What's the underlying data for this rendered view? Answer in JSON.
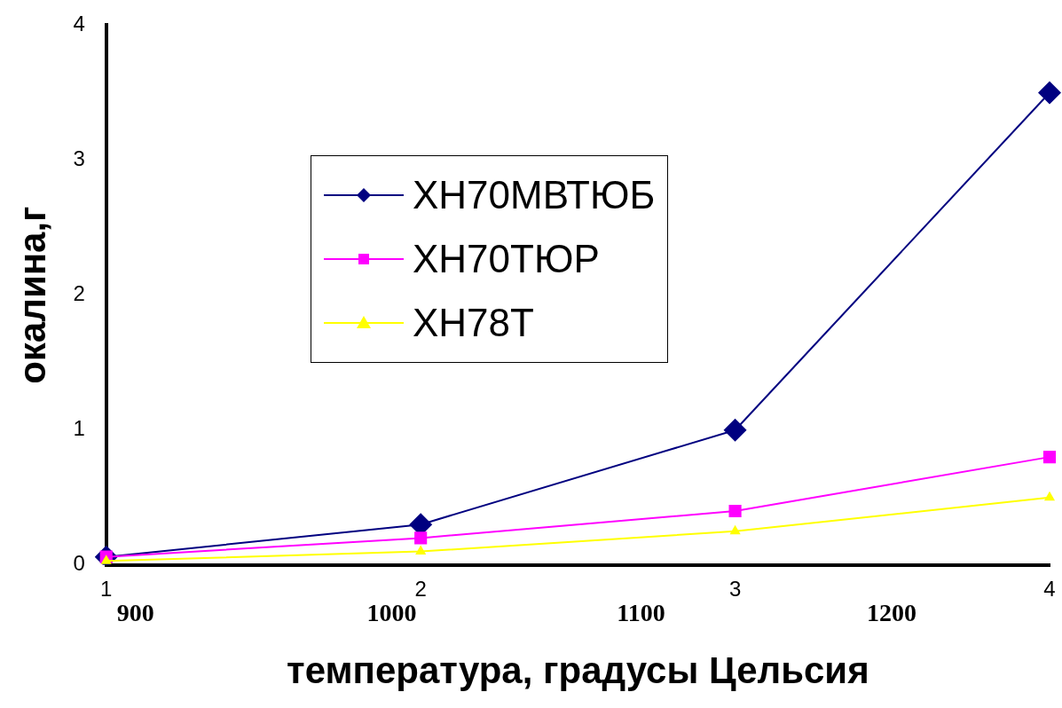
{
  "chart_data": {
    "type": "line",
    "xlabel": "температура, градусы Цельсия",
    "ylabel": "окалина,г",
    "categories": [
      "1",
      "2",
      "3",
      "4"
    ],
    "series": [
      {
        "name": "ХН70МВТЮБ",
        "color": "#000080",
        "marker": "diamond",
        "values": [
          0.06,
          0.3,
          1.0,
          3.5
        ]
      },
      {
        "name": "ХН70ТЮР",
        "color": "#ff00ff",
        "marker": "square",
        "values": [
          0.06,
          0.2,
          0.4,
          0.8
        ]
      },
      {
        "name": "ХН78Т",
        "color": "#ffff00",
        "marker": "triangle",
        "values": [
          0.03,
          0.1,
          0.25,
          0.5
        ]
      }
    ],
    "ylim": [
      0,
      4
    ],
    "yticks": [
      0,
      1,
      2,
      3,
      4
    ],
    "grid": false,
    "legend": "center left",
    "line_style": "solid",
    "annotations": [
      "900",
      "1000",
      "1100",
      "1200"
    ]
  }
}
